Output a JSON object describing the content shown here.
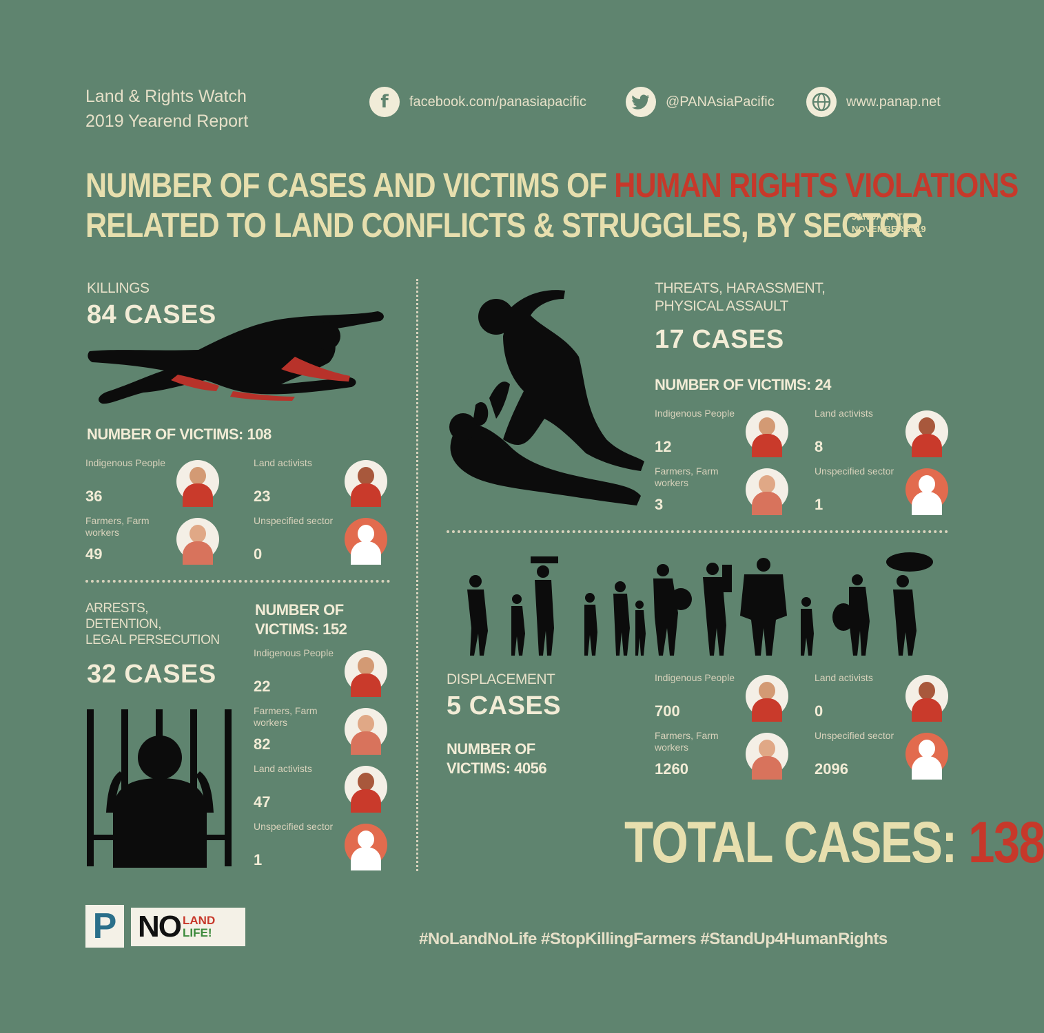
{
  "header": {
    "report_line1": "Land & Rights Watch",
    "report_line2": "2019 Yearend Report",
    "facebook": "facebook.com/panasiapacific",
    "twitter": "@PANAsiaPacific",
    "web": "www.panap.net",
    "facebook_icon": "facebook-icon",
    "twitter_icon": "twitter-icon",
    "web_icon": "globe-icon"
  },
  "title": {
    "part1": "NUMBER OF CASES AND VICTIMS OF ",
    "highlight": "HUMAN RIGHTS VIOLATIONS",
    "line2": "RELATED TO LAND CONFLICTS & STRUGGLES, BY SECTOR",
    "date_line1": "JANUARY TO",
    "date_line2": "NOVEMBER 2019"
  },
  "colors": {
    "background": "#5f846f",
    "accent_red": "#c7382a",
    "title_cream": "#e7dfae"
  },
  "killings": {
    "label": "KILLINGS",
    "cases": "84 CASES",
    "victims": "NUMBER OF VICTIMS: 108",
    "stats": [
      {
        "label": "Indigenous People",
        "value": "36"
      },
      {
        "label": "Land activists",
        "value": "23"
      },
      {
        "label": "Farmers, Farm workers",
        "value": "49"
      },
      {
        "label": "Unspecified sector",
        "value": "0"
      }
    ]
  },
  "threats": {
    "label1": "THREATS, HARASSMENT,",
    "label2": "PHYSICAL ASSAULT",
    "cases": "17 CASES",
    "victims": "NUMBER OF VICTIMS: 24",
    "stats": [
      {
        "label": "Indigenous People",
        "value": "12"
      },
      {
        "label": "Land activists",
        "value": "8"
      },
      {
        "label": "Farmers, Farm workers",
        "value": "3"
      },
      {
        "label": "Unspecified sector",
        "value": "1"
      }
    ]
  },
  "arrests": {
    "label1": "ARRESTS,",
    "label2": "DETENTION,",
    "label3": "LEGAL PERSECUTION",
    "cases": "32 CASES",
    "victims1": "NUMBER OF",
    "victims2": "VICTIMS: 152",
    "stats": [
      {
        "label": "Indigenous People",
        "value": "22"
      },
      {
        "label": "Farmers, Farm workers",
        "value": "82"
      },
      {
        "label": "Land activists",
        "value": "47"
      },
      {
        "label": "Unspecified sector",
        "value": "1"
      }
    ]
  },
  "displacement": {
    "label": "DISPLACEMENT",
    "cases": "5 CASES",
    "victims1": "NUMBER OF",
    "victims2": "VICTIMS: 4056",
    "stats": [
      {
        "label": "Indigenous People",
        "value": "700"
      },
      {
        "label": "Land activists",
        "value": "0"
      },
      {
        "label": "Farmers, Farm workers",
        "value": "1260"
      },
      {
        "label": "Unspecified sector",
        "value": "2096"
      }
    ]
  },
  "total": {
    "label": "TOTAL CASES: ",
    "value": "138"
  },
  "footer": {
    "hashtags": "#NoLandNoLife #StopKillingFarmers #StandUp4HumanRights",
    "logo_p": "P",
    "logo_no": "NO",
    "logo_land": "LAND",
    "logo_life": "LIFE!"
  }
}
